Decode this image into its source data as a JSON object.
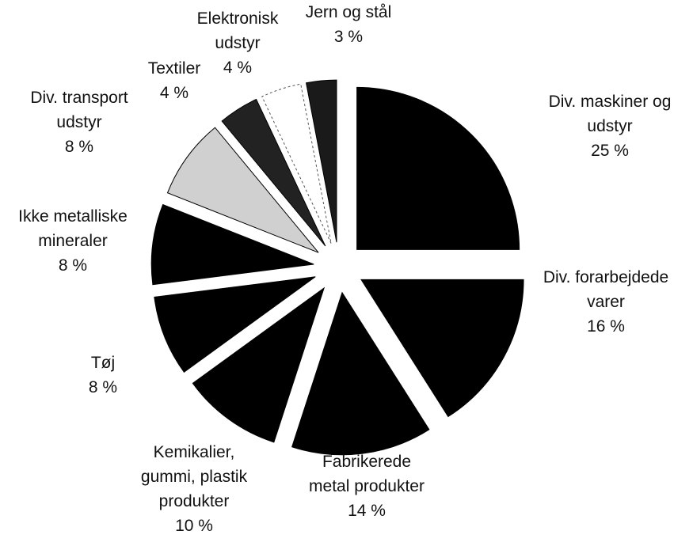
{
  "chart_data": {
    "type": "pie",
    "categories": [
      "Div.  maskiner og\nudstyr",
      "Div. forarbejdede\nvarer",
      "Fabrikerede\nmetal produkter",
      "Kemikalier,\ngummi, plastik\nprodukter",
      "Tøj",
      "Ikke metalliske\nmineraler",
      "Div. transport\nudstyr",
      "Textiler",
      "Elektronisk\nudstyr",
      "Jern og stål"
    ],
    "values": [
      25,
      16,
      14,
      10,
      8,
      8,
      8,
      4,
      4,
      3
    ],
    "value_labels": [
      "25 %",
      "16 %",
      "14 %",
      "10 %",
      "8 %",
      "8 %",
      "8 %",
      "4 %",
      "4 %",
      "3 %"
    ],
    "colors": [
      "#000000",
      "#000000",
      "#000000",
      "#000000",
      "#000000",
      "#000000",
      "#d0d0d0",
      "#222222",
      "#ffffff",
      "#1a1a1a"
    ]
  }
}
